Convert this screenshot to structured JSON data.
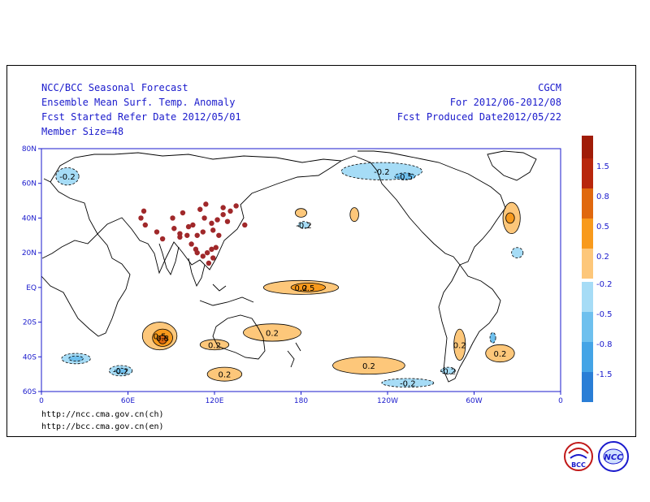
{
  "header": {
    "left": [
      "NCC/BCC Seasonal Forecast",
      "Ensemble Mean Surf. Temp. Anomaly",
      "Fcst Started Refer Date 2012/05/01",
      "Member Size=48"
    ],
    "right": [
      "CGCM",
      "For 2012/06-2012/08",
      "Fcst Produced Date2012/05/22"
    ]
  },
  "urls": [
    "http://ncc.cma.gov.cn(ch)",
    "http://bcc.cma.gov.cn(en)"
  ],
  "axes": {
    "lon_ticks": [
      {
        "lon": 0,
        "label": "0"
      },
      {
        "lon": 60,
        "label": "60E"
      },
      {
        "lon": 120,
        "label": "120E"
      },
      {
        "lon": 180,
        "label": "180"
      },
      {
        "lon": 240,
        "label": "120W"
      },
      {
        "lon": 300,
        "label": "60W"
      },
      {
        "lon": 360,
        "label": "0"
      }
    ],
    "lat_ticks": [
      {
        "lat": 80,
        "label": "80N"
      },
      {
        "lat": 60,
        "label": "60N"
      },
      {
        "lat": 40,
        "label": "40N"
      },
      {
        "lat": 20,
        "label": "20N"
      },
      {
        "lat": 0,
        "label": "EQ"
      },
      {
        "lat": -20,
        "label": "20S"
      },
      {
        "lat": -40,
        "label": "40S"
      },
      {
        "lat": -60,
        "label": "60S"
      }
    ],
    "lon_range": [
      0,
      360
    ],
    "lat_range": [
      -60,
      80
    ]
  },
  "colorbar": {
    "warm": [
      {
        "label": "1.5",
        "color": "#b8260c"
      },
      {
        "label": "0.8",
        "color": "#e0680e"
      },
      {
        "label": "0.5",
        "color": "#f89a1c"
      },
      {
        "label": "0.2",
        "color": "#fdc77a"
      }
    ],
    "warm_top": "#a01c08",
    "cold": [
      {
        "label": "-0.2",
        "color": "#a6dcf6"
      },
      {
        "label": "-0.5",
        "color": "#6ec0ee"
      },
      {
        "label": "-0.8",
        "color": "#44a4e6"
      },
      {
        "label": "-1.5",
        "color": "#2a7ed6"
      }
    ],
    "cold_bottom": "#2a7ed6"
  },
  "anomalies": [
    {
      "lon": 180,
      "lat": 0,
      "rx": 26,
      "ry": 4,
      "level": 1,
      "label": "0.2"
    },
    {
      "lon": 185,
      "lat": 0,
      "rx": 12,
      "ry": 2.5,
      "level": 2,
      "label": "0.5"
    },
    {
      "lon": 82,
      "lat": -28,
      "rx": 12,
      "ry": 8,
      "level": 1,
      "label": "0.5"
    },
    {
      "lon": 84,
      "lat": -29,
      "rx": 7,
      "ry": 5,
      "level": 2,
      "label": "0.8"
    },
    {
      "lon": 84,
      "lat": -30,
      "rx": 3,
      "ry": 2.5,
      "level": 3,
      "label": ""
    },
    {
      "lon": 160,
      "lat": -26,
      "rx": 20,
      "ry": 5,
      "level": 1,
      "label": "0.2"
    },
    {
      "lon": 227,
      "lat": -45,
      "rx": 25,
      "ry": 5,
      "level": 1,
      "label": "0.2"
    },
    {
      "lon": 318,
      "lat": -38,
      "rx": 10,
      "ry": 5,
      "level": 1,
      "label": "0.2"
    },
    {
      "lon": 326,
      "lat": 40,
      "rx": 6,
      "ry": 9,
      "level": 1,
      "label": ""
    },
    {
      "lon": 325,
      "lat": 40,
      "rx": 3,
      "ry": 3,
      "level": 2,
      "label": ""
    },
    {
      "lon": 127,
      "lat": -50,
      "rx": 12,
      "ry": 4,
      "level": 1,
      "label": "0.2"
    },
    {
      "lon": 120,
      "lat": -33,
      "rx": 10,
      "ry": 3,
      "level": 1,
      "label": "0.2"
    },
    {
      "lon": 290,
      "lat": -33,
      "rx": 4,
      "ry": 9,
      "level": 1,
      "label": "0.2"
    },
    {
      "lon": 180,
      "lat": 43,
      "rx": 4,
      "ry": 2.5,
      "level": 1,
      "label": ""
    },
    {
      "lon": 217,
      "lat": 42,
      "rx": 3,
      "ry": 4,
      "level": 1,
      "label": ""
    },
    {
      "lon": 55,
      "lat": -48,
      "rx": 8,
      "ry": 3,
      "level": -1,
      "label": "-0.2"
    },
    {
      "lon": 55,
      "lat": -48,
      "rx": 4,
      "ry": 1.5,
      "level": -2,
      "label": ""
    },
    {
      "lon": 24,
      "lat": -41,
      "rx": 10,
      "ry": 3,
      "level": -1,
      "label": ""
    },
    {
      "lon": 24,
      "lat": -41,
      "rx": 5,
      "ry": 1.5,
      "level": -2,
      "label": ""
    },
    {
      "lon": 236,
      "lat": 67,
      "rx": 28,
      "ry": 5,
      "level": -1,
      "label": "-0.2"
    },
    {
      "lon": 252,
      "lat": 64,
      "rx": 7,
      "ry": 2,
      "level": -2,
      "label": "-0.5"
    },
    {
      "lon": 18,
      "lat": 64,
      "rx": 8,
      "ry": 5,
      "level": -1,
      "label": "-0.2"
    },
    {
      "lon": 313,
      "lat": -29,
      "rx": 2,
      "ry": 3,
      "level": -2,
      "label": ""
    },
    {
      "lon": 282,
      "lat": -48,
      "rx": 5,
      "ry": 2,
      "level": -1,
      "label": "-0.2"
    },
    {
      "lon": 182,
      "lat": 36,
      "rx": 4,
      "ry": 2,
      "level": -1,
      "label": "-0.2"
    },
    {
      "lon": 254,
      "lat": -55,
      "rx": 18,
      "ry": 2.5,
      "level": -1,
      "label": "-0.2"
    },
    {
      "lon": 330,
      "lat": 20,
      "rx": 4,
      "ry": 3,
      "level": -1,
      "label": ""
    }
  ],
  "stations": [
    [
      72,
      36
    ],
    [
      69,
      40
    ],
    [
      71,
      44
    ],
    [
      80,
      32
    ],
    [
      84,
      28
    ],
    [
      92,
      34
    ],
    [
      96,
      31
    ],
    [
      101,
      30
    ],
    [
      104,
      25
    ],
    [
      107,
      22
    ],
    [
      108,
      20
    ],
    [
      112,
      18
    ],
    [
      115,
      20
    ],
    [
      118,
      22
    ],
    [
      121,
      23
    ],
    [
      113,
      40
    ],
    [
      118,
      37
    ],
    [
      122,
      39
    ],
    [
      126,
      42
    ],
    [
      126,
      46
    ],
    [
      131,
      44
    ],
    [
      135,
      47
    ],
    [
      141,
      36
    ],
    [
      108,
      30
    ],
    [
      102,
      35
    ],
    [
      110,
      45
    ],
    [
      96,
      29
    ],
    [
      91,
      40
    ],
    [
      112,
      32
    ],
    [
      105,
      36
    ],
    [
      119,
      33
    ],
    [
      116,
      14
    ],
    [
      119,
      17
    ],
    [
      123,
      30
    ],
    [
      129,
      38
    ],
    [
      114,
      48
    ],
    [
      98,
      43
    ]
  ]
}
